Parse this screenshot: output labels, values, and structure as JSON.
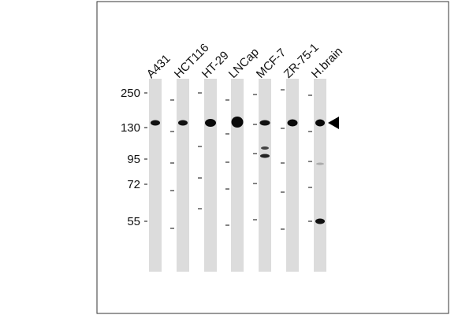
{
  "lanes": [
    "A431",
    "HCT116",
    "HT-29",
    "LNCap",
    "MCF-7",
    "ZR-75-1",
    "H.brain"
  ],
  "markers": [
    "250",
    "130",
    "95",
    "72",
    "55"
  ]
}
